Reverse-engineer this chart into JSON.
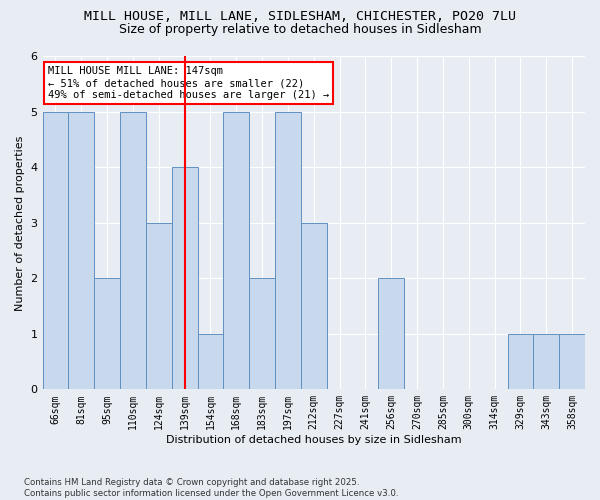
{
  "title1": "MILL HOUSE, MILL LANE, SIDLESHAM, CHICHESTER, PO20 7LU",
  "title2": "Size of property relative to detached houses in Sidlesham",
  "xlabel": "Distribution of detached houses by size in Sidlesham",
  "ylabel": "Number of detached properties",
  "categories": [
    "66sqm",
    "81sqm",
    "95sqm",
    "110sqm",
    "124sqm",
    "139sqm",
    "154sqm",
    "168sqm",
    "183sqm",
    "197sqm",
    "212sqm",
    "227sqm",
    "241sqm",
    "256sqm",
    "270sqm",
    "285sqm",
    "300sqm",
    "314sqm",
    "329sqm",
    "343sqm",
    "358sqm"
  ],
  "values": [
    5,
    5,
    2,
    5,
    3,
    4,
    1,
    5,
    2,
    5,
    3,
    0,
    0,
    2,
    0,
    0,
    0,
    0,
    1,
    1,
    1
  ],
  "bar_color": "#c9d9ed",
  "bar_edge_color": "#6090c0",
  "annotation_text": "MILL HOUSE MILL LANE: 147sqm\n← 51% of detached houses are smaller (22)\n49% of semi-detached houses are larger (21) →",
  "annotation_box_color": "white",
  "annotation_box_edge_color": "red",
  "ref_line_color": "red",
  "ref_line_index": 5,
  "ylim": [
    0,
    6
  ],
  "yticks": [
    0,
    1,
    2,
    3,
    4,
    5,
    6
  ],
  "footer": "Contains HM Land Registry data © Crown copyright and database right 2025.\nContains public sector information licensed under the Open Government Licence v3.0.",
  "bg_color": "#e8edf4",
  "title_fontsize": 9.5,
  "subtitle_fontsize": 9
}
